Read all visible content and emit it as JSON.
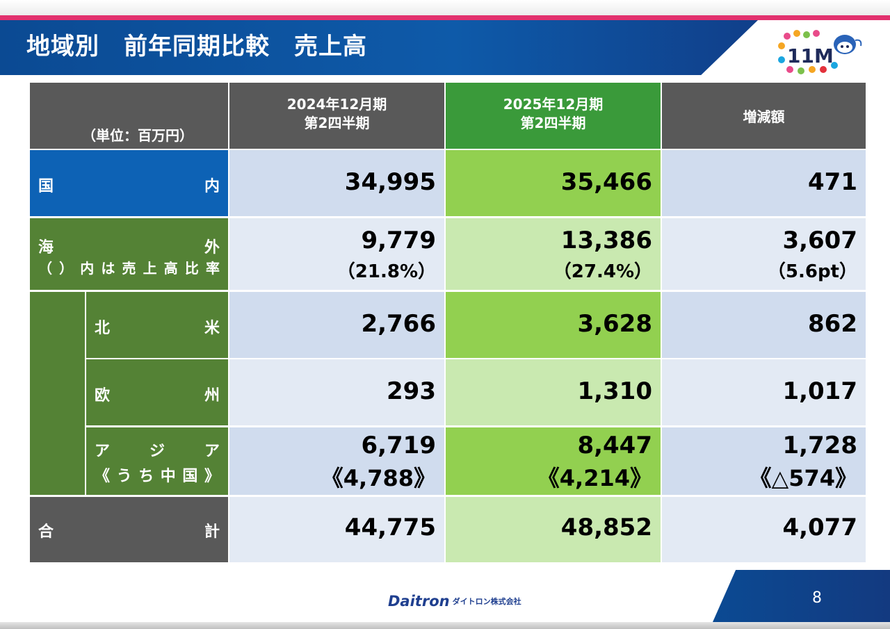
{
  "header": {
    "title": "地域別　前年同期比較　売上高",
    "logo_text": "11M"
  },
  "table": {
    "unit_label": "（単位：百万円）",
    "col_prev": [
      "2024年12月期",
      "第2四半期"
    ],
    "col_curr": [
      "2025年12月期",
      "第2四半期"
    ],
    "col_diff": "増減額",
    "rows": {
      "domestic": {
        "label": [
          "国",
          "内"
        ],
        "prev": "34,995",
        "curr": "35,466",
        "diff": "471"
      },
      "overseas": {
        "label": [
          "海",
          "外"
        ],
        "sublabel": [
          "（",
          "）",
          "内",
          "は",
          "売",
          "上",
          "高",
          "比",
          "率"
        ],
        "prev": "9,779",
        "prev_ratio": "（21.8%）",
        "curr": "13,386",
        "curr_ratio": "（27.4%）",
        "diff": "3,607",
        "diff_ratio": "（5.6pt）"
      },
      "north_america": {
        "label": [
          "北",
          "米"
        ],
        "prev": "2,766",
        "curr": "3,628",
        "diff": "862"
      },
      "europe": {
        "label": [
          "欧",
          "州"
        ],
        "prev": "293",
        "curr": "1,310",
        "diff": "1,017"
      },
      "asia": {
        "label": [
          "ア",
          "ジ",
          "ア"
        ],
        "sublabel": [
          "《",
          "う",
          "ち",
          "中",
          "国",
          "》"
        ],
        "prev": "6,719",
        "prev_china": "《4,788》",
        "curr": "8,447",
        "curr_china": "《4,214》",
        "diff": "1,728",
        "diff_china": "《△574》"
      },
      "total": {
        "label": [
          "合",
          "計"
        ],
        "prev": "44,775",
        "curr": "48,852",
        "diff": "4,077"
      }
    }
  },
  "footer": {
    "brand": "Daitron",
    "brand_kana": "ダイトロン株式会社",
    "page": "8"
  },
  "colors": {
    "title_blue": "#0e5aa9",
    "accent_pink": "#e2316e",
    "domestic_blue": "#0d62b5",
    "overseas_green": "#548235",
    "current_green": "#92d050"
  }
}
